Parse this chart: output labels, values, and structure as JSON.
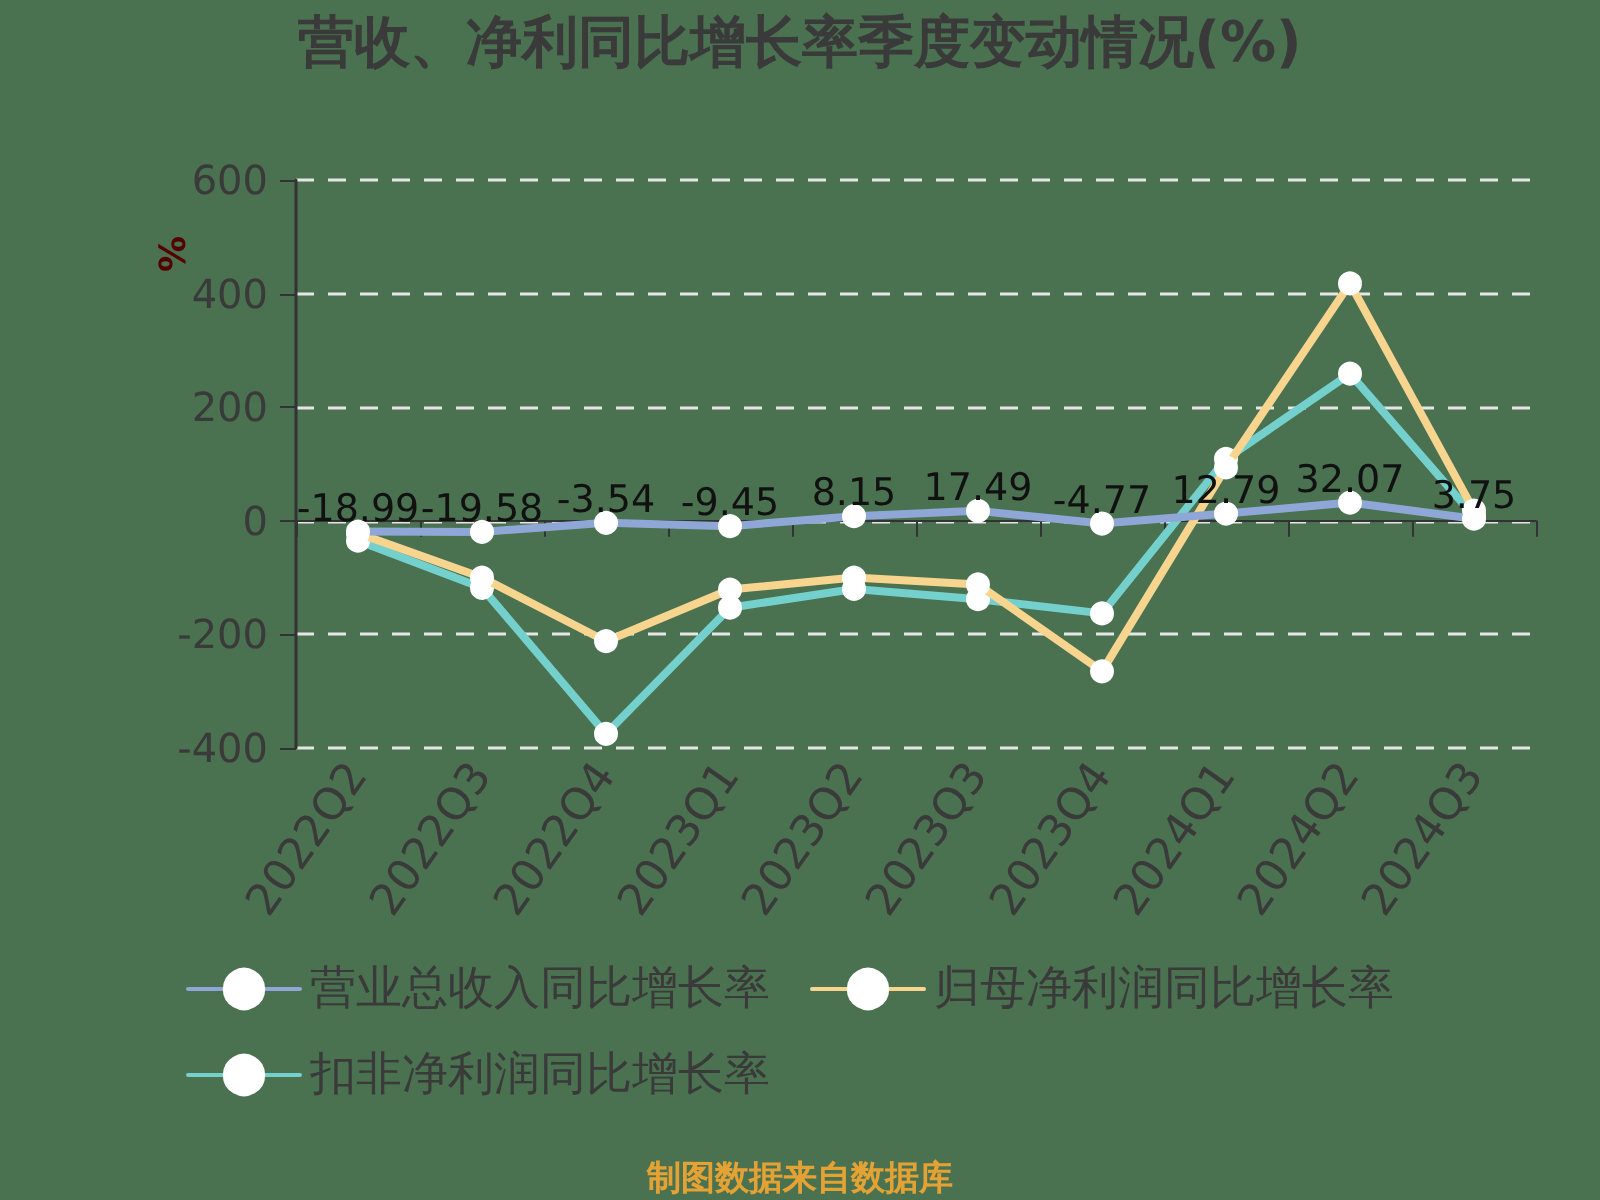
{
  "chart_data": {
    "type": "line",
    "title": "营收、净利同比增长率季度变动情况(%)",
    "ylabel": "%",
    "annotations": [
      "制图数据来自数据库"
    ],
    "categories": [
      "2022Q2",
      "2022Q3",
      "2022Q4",
      "2023Q1",
      "2023Q2",
      "2023Q3",
      "2023Q4",
      "2024Q1",
      "2024Q2",
      "2024Q3"
    ],
    "series": [
      {
        "name": "营业总收入同比增长率",
        "color": "#8ea7d6",
        "values": [
          -18.99,
          -19.58,
          -3.54,
          -9.45,
          8.15,
          17.49,
          -4.77,
          12.79,
          32.07,
          3.75
        ],
        "value_labels": [
          "-18.99",
          "-19.58",
          "-3.54",
          "-9.45",
          "8.15",
          "17.49",
          "-4.77",
          "12.79",
          "32.07",
          "3.75"
        ]
      },
      {
        "name": "归母净利润同比增长率",
        "color": "#f7d58f",
        "values": [
          -22,
          -100,
          -212,
          -121,
          -100,
          -112,
          -265,
          94,
          418,
          18
        ]
      },
      {
        "name": "扣非净利润同比增长率",
        "color": "#74d0cc",
        "values": [
          -35,
          -118,
          -375,
          -153,
          -120,
          -138,
          -163,
          109,
          259,
          8
        ]
      }
    ],
    "ylim": [
      -400,
      600
    ],
    "yticks": [
      -400,
      -200,
      0,
      200,
      400,
      600
    ],
    "grid": "y",
    "legend": "bottom",
    "marker": "circle",
    "line_style": "solid"
  }
}
